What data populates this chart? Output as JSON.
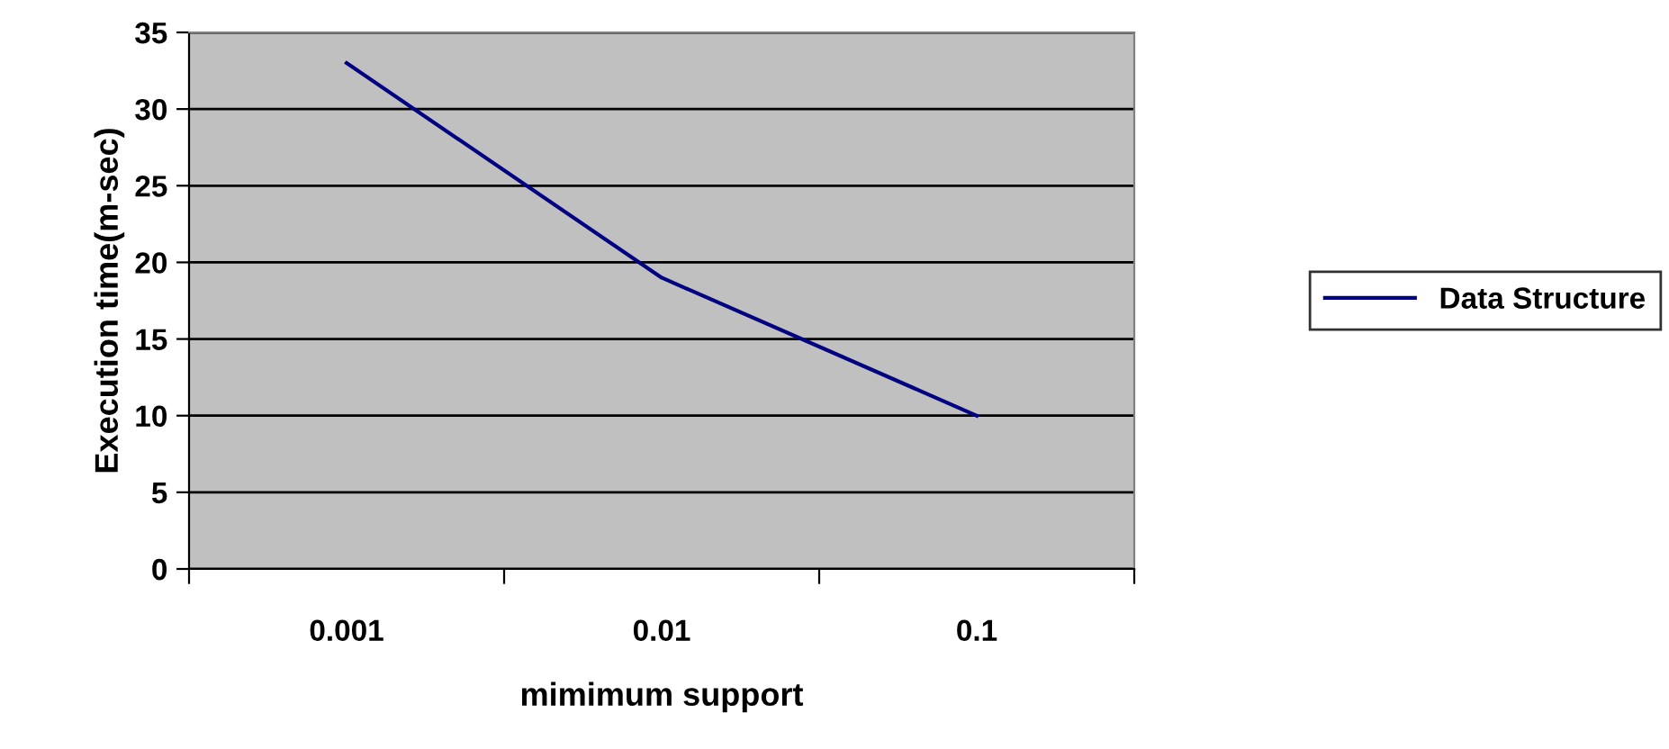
{
  "chart_data": {
    "type": "line",
    "xlabel": "mimimum support",
    "ylabel": "Execution time(m-sec)",
    "categories": [
      "0.001",
      "0.01",
      "0.1"
    ],
    "series": [
      {
        "name": "Data Structure",
        "color": "#000080",
        "values": [
          33,
          19,
          10
        ]
      }
    ],
    "ylim": [
      0,
      35
    ],
    "yticks": [
      0,
      5,
      10,
      15,
      20,
      25,
      30,
      35
    ],
    "grid": "y",
    "legend": "right",
    "marker": "none",
    "line_style": "solid"
  }
}
